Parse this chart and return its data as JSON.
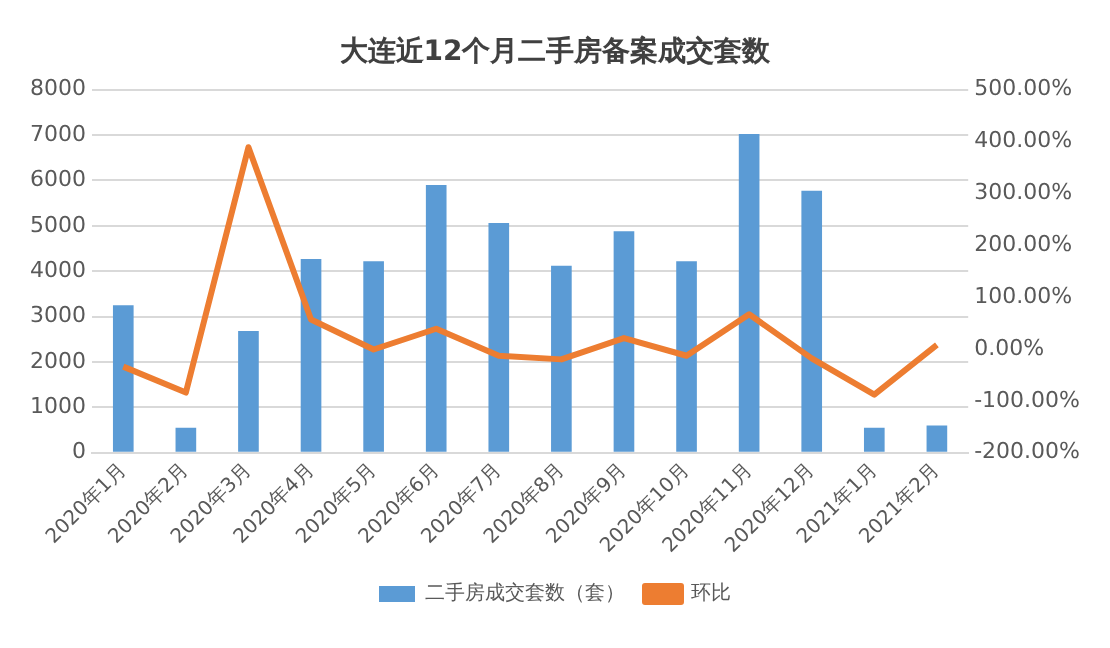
{
  "chart_data": {
    "type": "bar",
    "title": "大连近12个月二手房备案成交套数",
    "categories": [
      "2020年1月",
      "2020年2月",
      "2020年3月",
      "2020年4月",
      "2020年5月",
      "2020年6月",
      "2020年7月",
      "2020年8月",
      "2020年9月",
      "2020年10月",
      "2020年11月",
      "2020年12月",
      "2021年1月",
      "2021年2月"
    ],
    "series": [
      {
        "name": "二手房成交套数（套）",
        "color": "#5b9bd5",
        "values": [
          3250,
          550,
          2680,
          4270,
          4220,
          5900,
          5060,
          4120,
          4880,
          4220,
          7020,
          5770,
          550,
          600
        ]
      },
      {
        "name": "环比",
        "type": "line",
        "axis": "y2",
        "color": "#ed7d31",
        "values": [
          -34,
          -84,
          389,
          57,
          -1,
          39,
          -13,
          -20,
          21,
          -13,
          67,
          -18,
          -88,
          8
        ]
      }
    ],
    "ylim": [
      0,
      8000
    ],
    "yticks": [
      0,
      1000,
      2000,
      3000,
      4000,
      5000,
      6000,
      7000,
      8000
    ],
    "y2lim": [
      -200,
      500
    ],
    "y2ticks": [
      {
        "value": -200,
        "label": "-200.00%"
      },
      {
        "value": -100,
        "label": "-100.00%"
      },
      {
        "value": 0,
        "label": "0.00%"
      },
      {
        "value": 100,
        "label": "100.00%"
      },
      {
        "value": 200,
        "label": "200.00%"
      },
      {
        "value": 300,
        "label": "300.00%"
      },
      {
        "value": 400,
        "label": "400.00%"
      },
      {
        "value": 500,
        "label": "500.00%"
      }
    ],
    "grid": "y",
    "legend": "bottom",
    "marker": "none",
    "line_style": "solid"
  }
}
